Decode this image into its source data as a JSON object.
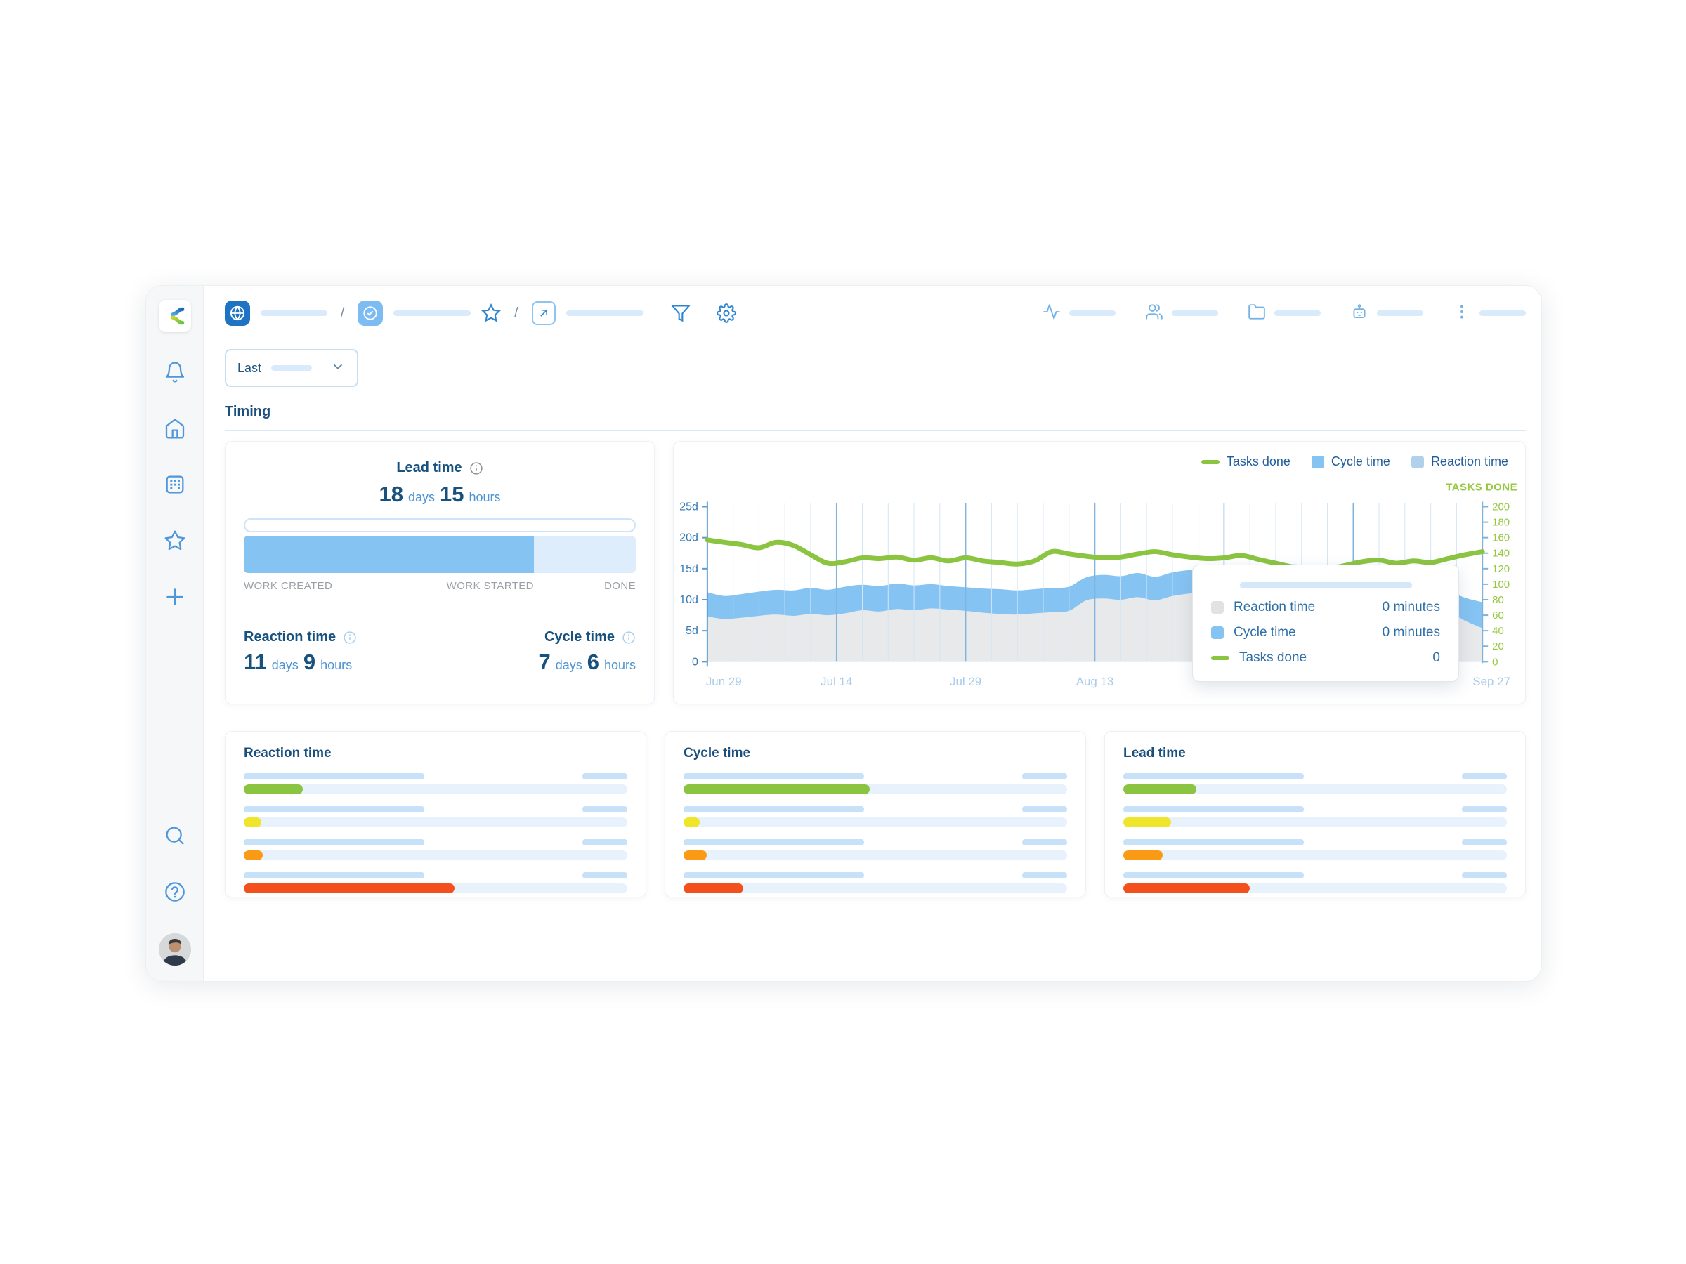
{
  "branding": {
    "logo_letter": "K"
  },
  "theme": {
    "accent_blue": "#1e73c2",
    "light_blue": "#85c3f2",
    "pale_blue": "#d9eafb",
    "navy_text": "#17517e",
    "green": "#8bc441",
    "yellow": "#efe52b",
    "orange": "#fa9a15",
    "red": "#f4501e",
    "track": "#e8f2fc",
    "gray_band": "#e8e9ea"
  },
  "sidebar": {
    "icons_top": [
      "bell",
      "home",
      "board",
      "star",
      "plus"
    ],
    "icons_bottom": [
      "search",
      "help"
    ],
    "avatar": "user-photo"
  },
  "toolbar": {
    "separator": "/",
    "right_icons": [
      "activity",
      "team",
      "folder",
      "robot",
      "kebab"
    ]
  },
  "period_dropdown": {
    "label": "Last"
  },
  "section": {
    "title": "Timing"
  },
  "summary": {
    "lead": {
      "title": "Lead time",
      "value_1": "18",
      "unit_1": "days",
      "value_2": "15",
      "unit_2": "hours"
    },
    "progress_pct": 74,
    "milestones": [
      "WORK CREATED",
      "WORK STARTED",
      "DONE"
    ],
    "reaction": {
      "title": "Reaction time",
      "value_1": "11",
      "unit_1": "days",
      "value_2": "9",
      "unit_2": "hours"
    },
    "cycle": {
      "title": "Cycle time",
      "value_1": "7",
      "unit_1": "days",
      "value_2": "6",
      "unit_2": "hours"
    }
  },
  "chart_data": {
    "type": "area",
    "legend": [
      {
        "label": "Tasks done",
        "swatch": "line",
        "color": "#8bc441"
      },
      {
        "label": "Cycle time",
        "swatch": "square",
        "color": "#85c3f2"
      },
      {
        "label": "Reaction time",
        "swatch": "square",
        "color": "#b0d0ec"
      }
    ],
    "right_axis_title": "TASKS DONE",
    "left_axis_ticks": [
      "0",
      "5d",
      "10d",
      "15d",
      "20d",
      "25d"
    ],
    "left_axis_range_days": [
      0,
      25
    ],
    "right_axis_ticks": [
      0,
      20,
      40,
      60,
      80,
      100,
      120,
      140,
      160,
      180,
      200
    ],
    "right_axis_range": [
      0,
      200
    ],
    "x_total_days": 90,
    "x_labels": [
      {
        "label": "Jun 29",
        "t": 0
      },
      {
        "label": "Jul 14",
        "t": 0.1667
      },
      {
        "label": "Jul 29",
        "t": 0.3333
      },
      {
        "label": "Aug 13",
        "t": 0.5
      },
      {
        "label": "Sep 27",
        "t": 1
      }
    ],
    "grid": {
      "minor_every_days": 3,
      "major_every_days": 15
    },
    "series": [
      {
        "name": "Reaction time",
        "type": "area",
        "color": "#e8e9ea",
        "values_days": [
          7.3,
          6.9,
          7.1,
          7.4,
          7.6,
          7.4,
          7.7,
          7.5,
          7.8,
          8.3,
          8.1,
          8.5,
          8.3,
          8.6,
          8.4,
          8.2,
          7.9,
          7.7,
          7.6,
          7.8,
          8.0,
          8.2,
          9.9,
          10.2,
          10.0,
          10.4,
          9.9,
          10.6,
          11.0,
          11.3,
          11.6,
          11.4,
          11.8,
          12.0,
          12.2,
          12.1,
          12.3,
          12.4,
          12.2,
          12.0,
          11.6,
          10.8,
          9.6,
          8.2,
          6.6,
          5.4
        ]
      },
      {
        "name": "Cycle time",
        "type": "stacked-area-top",
        "color": "#85c3f2",
        "values_days": [
          11.2,
          10.6,
          10.9,
          11.3,
          11.6,
          11.5,
          11.9,
          11.6,
          12.1,
          12.4,
          12.2,
          12.6,
          12.3,
          12.5,
          12.2,
          12.0,
          11.8,
          11.7,
          11.5,
          11.7,
          11.9,
          12.1,
          13.6,
          14.0,
          13.8,
          14.3,
          13.7,
          14.4,
          14.8,
          15.0,
          15.3,
          15.1,
          15.4,
          15.6,
          15.7,
          15.5,
          15.6,
          15.7,
          15.4,
          15.2,
          14.8,
          14.0,
          12.8,
          11.5,
          10.3,
          9.6
        ]
      },
      {
        "name": "Tasks done",
        "type": "line",
        "axis": "right",
        "color": "#8bc441",
        "values": [
          157,
          154,
          151,
          147,
          154,
          150,
          138,
          127,
          129,
          134,
          133,
          135,
          131,
          134,
          130,
          134,
          130,
          128,
          126,
          130,
          142,
          139,
          136,
          134,
          135,
          139,
          142,
          138,
          135,
          133,
          134,
          137,
          132,
          127,
          122,
          117,
          119,
          124,
          129,
          131,
          127,
          130,
          128,
          133,
          138,
          142
        ]
      }
    ],
    "tooltip": {
      "rows": [
        {
          "label": "Reaction time",
          "value": "0 minutes",
          "swatch": "square",
          "color": "#e2e2e2"
        },
        {
          "label": "Cycle time",
          "value": "0 minutes",
          "swatch": "square",
          "color": "#85c3f2"
        },
        {
          "label": "Tasks done",
          "value": "0",
          "swatch": "line",
          "color": "#8bc441"
        }
      ]
    }
  },
  "distribution_cards": [
    {
      "title": "Reaction time",
      "bars": [
        {
          "color": "#8bc441",
          "pct": 15.3
        },
        {
          "color": "#efe52b",
          "pct": 4.6
        },
        {
          "color": "#fa9a15",
          "pct": 4.9
        },
        {
          "color": "#f4501e",
          "pct": 55
        }
      ]
    },
    {
      "title": "Cycle time",
      "bars": [
        {
          "color": "#8bc441",
          "pct": 48.5
        },
        {
          "color": "#efe52b",
          "pct": 4.2
        },
        {
          "color": "#fa9a15",
          "pct": 6.0
        },
        {
          "color": "#f4501e",
          "pct": 15.5
        }
      ]
    },
    {
      "title": "Lead time",
      "bars": [
        {
          "color": "#8bc441",
          "pct": 19
        },
        {
          "color": "#efe52b",
          "pct": 12.4
        },
        {
          "color": "#fa9a15",
          "pct": 10.3
        },
        {
          "color": "#f4501e",
          "pct": 33
        }
      ]
    }
  ]
}
